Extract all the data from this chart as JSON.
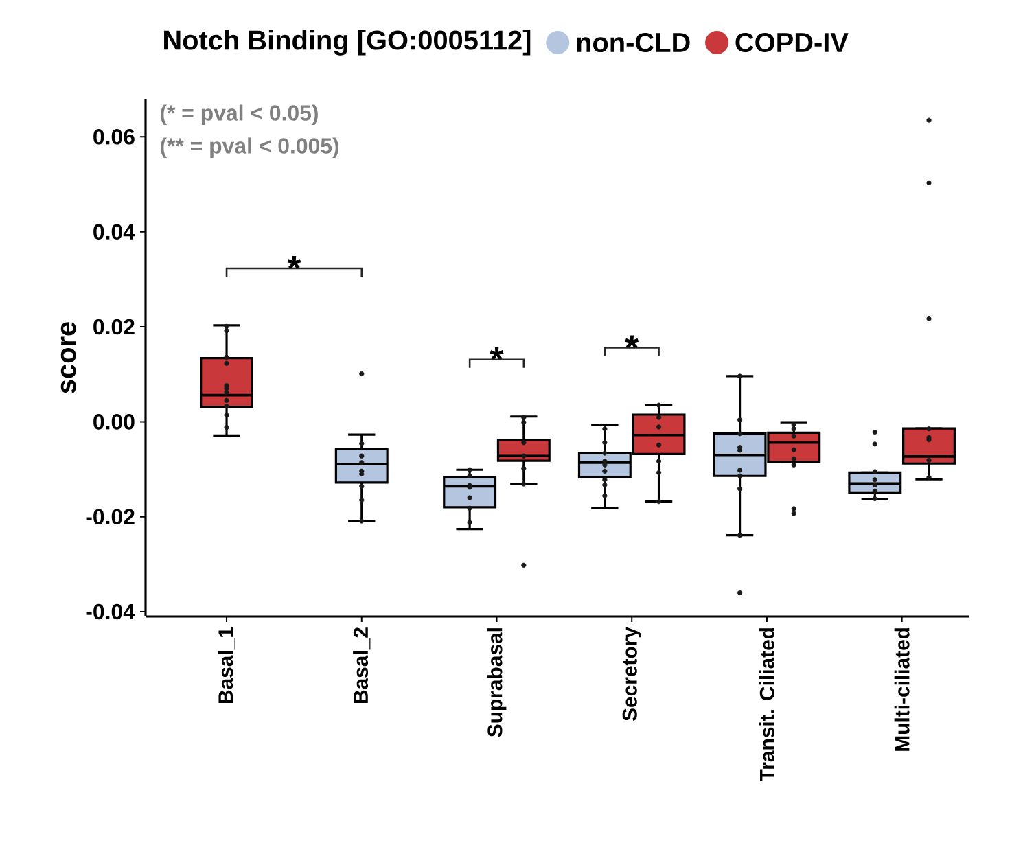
{
  "chart_data": {
    "type": "box",
    "title": "Notch Binding [GO:0005112]",
    "ylabel": "score",
    "legend": "top",
    "grid": false,
    "categories": [
      "Basal_1",
      "Basal_2",
      "Suprabasal",
      "Secretory",
      "Transit. Ciliated",
      "Multi-ciliated"
    ],
    "ylim": [
      -0.041,
      0.068
    ],
    "yticks": [
      {
        "value": -0.04,
        "label": "-0.04"
      },
      {
        "value": -0.02,
        "label": "-0.02"
      },
      {
        "value": 0,
        "label": "0.00"
      },
      {
        "value": 0.02,
        "label": "0.02"
      },
      {
        "value": 0.04,
        "label": "0.04"
      },
      {
        "value": 0.06,
        "label": "0.06"
      }
    ],
    "annotations": [
      "(* = pval < 0.05)",
      "(** = pval < 0.005)",
      "*",
      "*",
      "*"
    ],
    "series": [
      {
        "name": "non-CLD",
        "color": "#b4c6df",
        "boxes": [
          null,
          {
            "low": -0.0209,
            "q1": -0.0128,
            "median": -0.0089,
            "q3": -0.0058,
            "high": -0.0027
          },
          {
            "low": -0.0226,
            "q1": -0.018,
            "median": -0.0136,
            "q3": -0.0116,
            "high": -0.0101
          },
          {
            "low": -0.0182,
            "q1": -0.0117,
            "median": -0.0086,
            "q3": -0.0066,
            "high": -0.0006
          },
          {
            "low": -0.0239,
            "q1": -0.0114,
            "median": -0.007,
            "q3": -0.0025,
            "high": 0.0096
          },
          {
            "low": -0.0163,
            "q1": -0.0149,
            "median": -0.013,
            "q3": -0.0107,
            "high": -0.0107
          }
        ]
      },
      {
        "name": "COPD-IV",
        "color": "#c9393c",
        "boxes": [
          {
            "low": -0.0029,
            "q1": 0.0031,
            "median": 0.0056,
            "q3": 0.0134,
            "high": 0.0203
          },
          null,
          {
            "low": -0.0131,
            "q1": -0.0082,
            "median": -0.0072,
            "q3": -0.0038,
            "high": 0.0011
          },
          {
            "low": -0.0168,
            "q1": -0.0068,
            "median": -0.0028,
            "q3": 0.0015,
            "high": 0.0036
          },
          {
            "low": -0.0085,
            "q1": -0.0085,
            "median": -0.0044,
            "q3": -0.0023,
            "high": -0.0001
          },
          {
            "low": -0.0121,
            "q1": -0.0088,
            "median": -0.0073,
            "q3": -0.0014,
            "high": -0.0014
          }
        ]
      },
      {
        "type": "scatter",
        "color": "#1a1a1a",
        "x": [
          "Basal_2",
          "Basal_2",
          "Basal_2",
          "Basal_2",
          "Basal_2",
          "Basal_2",
          "Basal_2",
          "Basal_2",
          "Basal_2",
          "Suprabasal",
          "Suprabasal",
          "Suprabasal",
          "Suprabasal",
          "Suprabasal",
          "Suprabasal",
          "Suprabasal",
          "Secretory",
          "Secretory",
          "Secretory",
          "Secretory",
          "Secretory",
          "Secretory",
          "Secretory",
          "Secretory",
          "Secretory",
          "Transit. Ciliated",
          "Transit. Ciliated",
          "Transit. Ciliated",
          "Transit. Ciliated",
          "Transit. Ciliated",
          "Transit. Ciliated",
          "Transit. Ciliated",
          "Transit. Ciliated",
          "Transit. Ciliated",
          "Transit. Ciliated",
          "Multi-ciliated",
          "Multi-ciliated",
          "Multi-ciliated",
          "Multi-ciliated",
          "Multi-ciliated",
          "Multi-ciliated",
          "Multi-ciliated"
        ],
        "values": [
          0.0101,
          -0.0046,
          -0.0072,
          -0.0086,
          -0.0104,
          -0.011,
          -0.0136,
          -0.0165,
          -0.0209,
          -0.0101,
          -0.0114,
          -0.0134,
          -0.0138,
          -0.016,
          -0.0182,
          -0.0212,
          -0.0015,
          -0.0044,
          -0.0066,
          -0.0083,
          -0.0091,
          -0.0104,
          -0.0122,
          -0.0133,
          -0.0156,
          0.0096,
          0.0004,
          -0.0025,
          -0.0054,
          -0.006,
          -0.0102,
          -0.0114,
          -0.0141,
          -0.0239,
          -0.036,
          -0.0022,
          -0.0047,
          -0.0105,
          -0.0122,
          -0.0133,
          -0.0146,
          -0.0162
        ]
      },
      {
        "type": "scatter",
        "color": "#1a1a1a",
        "x": [
          "Basal_1",
          "Basal_1",
          "Basal_1",
          "Basal_1",
          "Basal_1",
          "Basal_1",
          "Basal_1",
          "Basal_1",
          "Basal_1",
          "Basal_1",
          "Basal_1",
          "Suprabasal",
          "Suprabasal",
          "Suprabasal",
          "Suprabasal",
          "Suprabasal",
          "Suprabasal",
          "Suprabasal",
          "Secretory",
          "Secretory",
          "Secretory",
          "Secretory",
          "Secretory",
          "Secretory",
          "Secretory",
          "Transit. Ciliated",
          "Transit. Ciliated",
          "Transit. Ciliated",
          "Transit. Ciliated",
          "Transit. Ciliated",
          "Transit. Ciliated",
          "Transit. Ciliated",
          "Transit. Ciliated",
          "Multi-ciliated",
          "Multi-ciliated",
          "Multi-ciliated",
          "Multi-ciliated",
          "Multi-ciliated",
          "Multi-ciliated",
          "Multi-ciliated",
          "Multi-ciliated"
        ],
        "values": [
          0.0201,
          0.0192,
          0.0136,
          0.0123,
          0.0076,
          0.007,
          0.0062,
          0.0045,
          0.0033,
          0.0014,
          -0.0012,
          0.0009,
          -0.0001,
          -0.0044,
          -0.0072,
          -0.0098,
          -0.0131,
          -0.0302,
          0.0035,
          0.0009,
          -0.0011,
          -0.0049,
          -0.0083,
          -0.0107,
          -0.0168,
          -0.0006,
          -0.0015,
          -0.003,
          -0.0059,
          -0.0078,
          -0.0091,
          -0.0183,
          -0.0193,
          0.0635,
          0.0503,
          0.0217,
          -0.0015,
          -0.0033,
          -0.0038,
          -0.0081,
          -0.0117
        ]
      }
    ]
  }
}
